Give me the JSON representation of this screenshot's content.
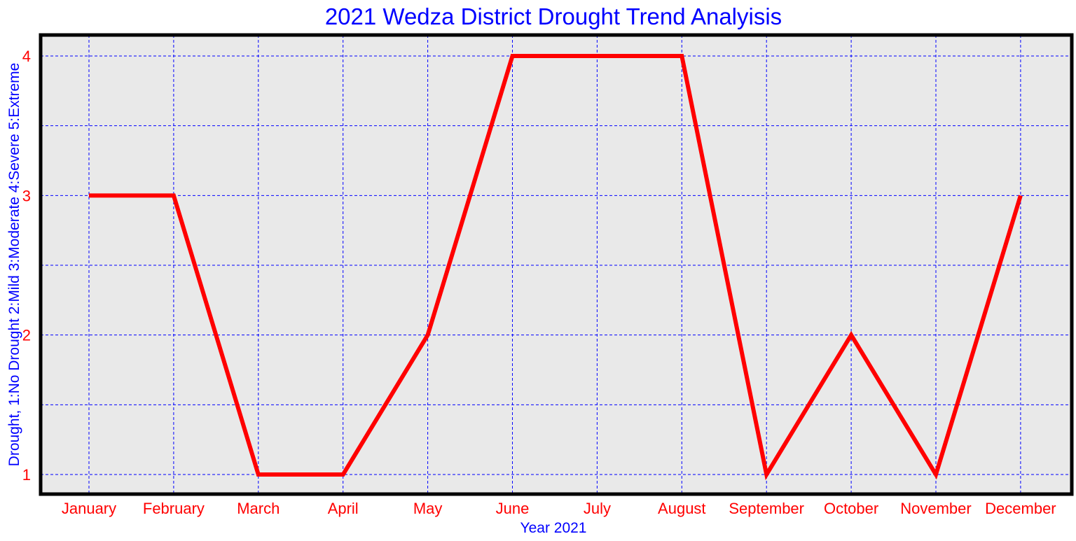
{
  "chart_data": {
    "type": "line",
    "title": "2021 Wedza District Drought Trend Analyisis",
    "xlabel": "Year 2021",
    "ylabel": "Drought, 1:No Drought 2:Mild 3:Moderate 4:Severe 5:Extreme",
    "categories": [
      "January",
      "February",
      "March",
      "April",
      "May",
      "June",
      "July",
      "August",
      "September",
      "October",
      "November",
      "December"
    ],
    "series": [
      {
        "values": [
          3,
          3,
          1,
          1,
          2,
          4,
          4,
          4,
          1,
          2,
          1,
          3
        ]
      }
    ],
    "ylim": [
      1,
      4
    ],
    "yticks": [
      "1",
      "2",
      "3",
      "4"
    ],
    "grid": true,
    "colors": {
      "line": "#ff0000",
      "grid": "#0000ff",
      "plot_background": "#e9e9e9",
      "frame": "#000000",
      "title": "#0000ff",
      "tick_labels": "#ff0000",
      "axis_labels": "#0000ff"
    }
  }
}
